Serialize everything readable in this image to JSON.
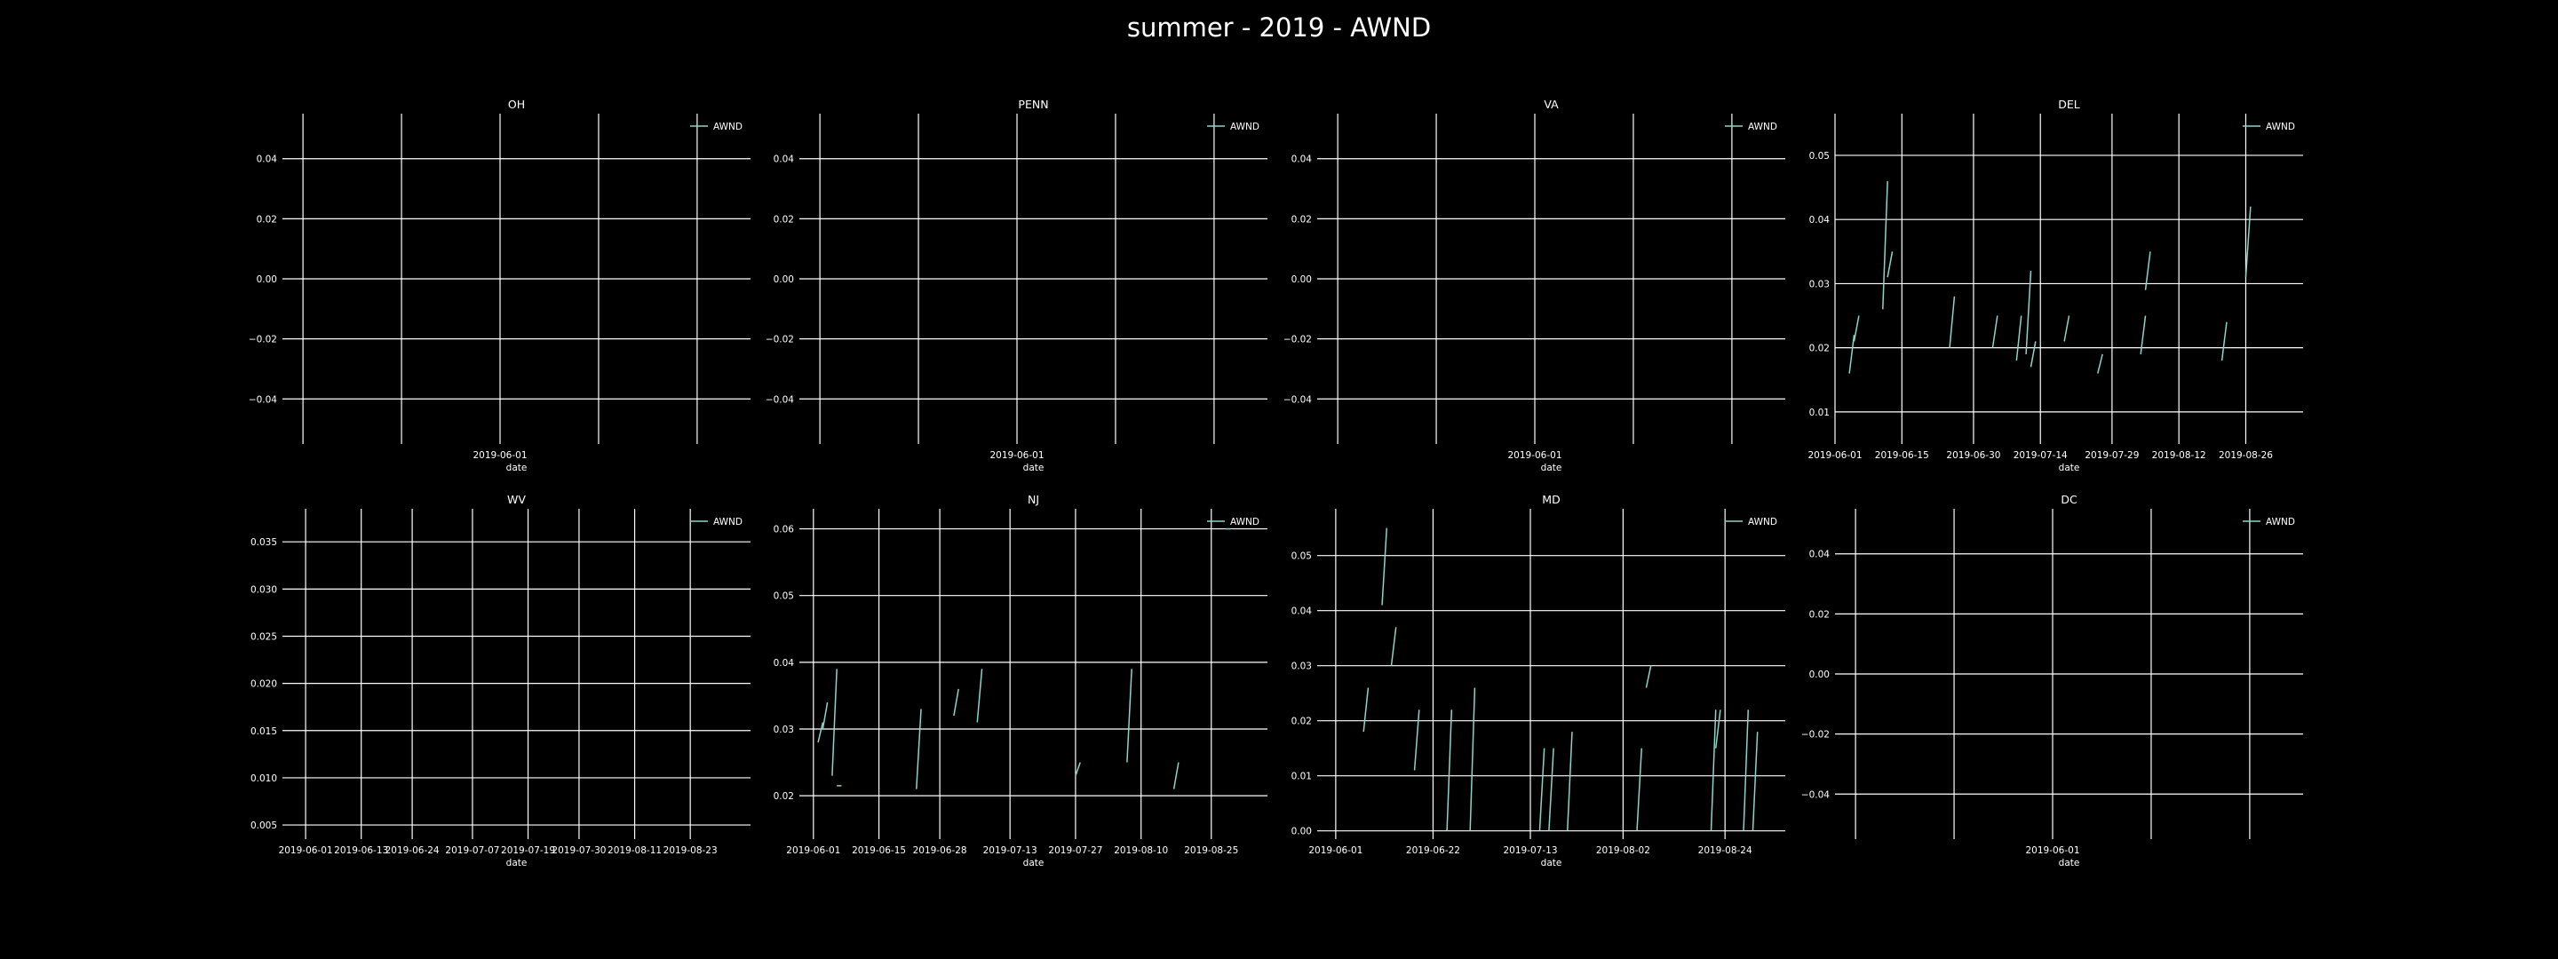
{
  "title": "summer - 2019 - AWND",
  "colors": {
    "background": "#000000",
    "grid": "#ffffff",
    "text": "#ffffff",
    "series": "#8dd3c7"
  },
  "chart_data": [
    {
      "type": "line",
      "title": "OH",
      "xlabel": "date",
      "ylabel": "",
      "legend": "AWND",
      "legend_position": "top-right",
      "grid": true,
      "ylim": [
        -0.055,
        0.055
      ],
      "yticks": [
        "0.04",
        "0.02",
        "0.00",
        "−0.02",
        "−0.04"
      ],
      "ytick_values": [
        0.04,
        0.02,
        0.0,
        -0.02,
        -0.04
      ],
      "xticks": [
        "2019-06-01"
      ],
      "xtick_values": [
        "2019-06-01"
      ],
      "xgrid": [
        "2019-05-31",
        "2019-05-31 12:00",
        "2019-06-01",
        "2019-06-01 12:00",
        "2019-06-02"
      ],
      "xlim": [
        "2019-05-30 21:30",
        "2019-06-02 06:30"
      ],
      "series": [
        {
          "name": "AWND",
          "segments": []
        }
      ]
    },
    {
      "type": "line",
      "title": "PENN",
      "xlabel": "date",
      "ylabel": "",
      "legend": "AWND",
      "legend_position": "top-right",
      "grid": true,
      "ylim": [
        -0.055,
        0.055
      ],
      "yticks": [
        "0.04",
        "0.02",
        "0.00",
        "−0.02",
        "−0.04"
      ],
      "ytick_values": [
        0.04,
        0.02,
        0.0,
        -0.02,
        -0.04
      ],
      "xticks": [
        "2019-06-01"
      ],
      "xtick_values": [
        "2019-06-01"
      ],
      "xgrid": [
        "2019-05-31",
        "2019-05-31 12:00",
        "2019-06-01",
        "2019-06-01 12:00",
        "2019-06-02"
      ],
      "xlim": [
        "2019-05-30 21:30",
        "2019-06-02 06:30"
      ],
      "series": [
        {
          "name": "AWND",
          "segments": []
        }
      ]
    },
    {
      "type": "line",
      "title": "VA",
      "xlabel": "date",
      "ylabel": "",
      "legend": "AWND",
      "legend_position": "top-right",
      "grid": true,
      "ylim": [
        -0.055,
        0.055
      ],
      "yticks": [
        "0.04",
        "0.02",
        "0.00",
        "−0.02",
        "−0.04"
      ],
      "ytick_values": [
        0.04,
        0.02,
        0.0,
        -0.02,
        -0.04
      ],
      "xticks": [
        "2019-06-01"
      ],
      "xtick_values": [
        "2019-06-01"
      ],
      "xgrid": [
        "2019-05-31",
        "2019-05-31 12:00",
        "2019-06-01",
        "2019-06-01 12:00",
        "2019-06-02"
      ],
      "xlim": [
        "2019-05-30 21:30",
        "2019-06-02 06:30"
      ],
      "series": [
        {
          "name": "AWND",
          "segments": []
        }
      ]
    },
    {
      "type": "line",
      "title": "DEL",
      "xlabel": "date",
      "ylabel": "",
      "legend": "AWND",
      "legend_position": "top-right",
      "grid": true,
      "ylim": [
        0.005,
        0.0565
      ],
      "yticks": [
        "0.05",
        "0.04",
        "0.03",
        "0.02",
        "0.01"
      ],
      "ytick_values": [
        0.05,
        0.04,
        0.03,
        0.02,
        0.01
      ],
      "xticks": [
        "2019-06-01",
        "2019-06-15",
        "2019-06-30",
        "2019-07-14",
        "2019-07-29",
        "2019-08-12",
        "2019-08-26"
      ],
      "xtick_values": [
        "2019-06-01",
        "2019-06-15",
        "2019-06-30",
        "2019-07-14",
        "2019-07-29",
        "2019-08-12",
        "2019-08-26"
      ],
      "xgrid": [
        "2019-06-01",
        "2019-06-15",
        "2019-06-30",
        "2019-07-14",
        "2019-07-29",
        "2019-08-12",
        "2019-08-26"
      ],
      "xlim": [
        "2019-06-01",
        "2019-09-07"
      ],
      "series": [
        {
          "name": "AWND",
          "segments": [
            {
              "x": [
                "2019-06-04",
                "2019-06-05"
              ],
              "y": [
                0.016,
                0.022
              ]
            },
            {
              "x": [
                "2019-06-05",
                "2019-06-06"
              ],
              "y": [
                0.021,
                0.025
              ]
            },
            {
              "x": [
                "2019-06-11",
                "2019-06-12"
              ],
              "y": [
                0.026,
                0.046
              ]
            },
            {
              "x": [
                "2019-06-12",
                "2019-06-13"
              ],
              "y": [
                0.031,
                0.035
              ]
            },
            {
              "x": [
                "2019-06-25",
                "2019-06-26"
              ],
              "y": [
                0.02,
                0.028
              ]
            },
            {
              "x": [
                "2019-07-04",
                "2019-07-05"
              ],
              "y": [
                0.02,
                0.025
              ]
            },
            {
              "x": [
                "2019-07-09",
                "2019-07-10"
              ],
              "y": [
                0.018,
                0.025
              ]
            },
            {
              "x": [
                "2019-07-11",
                "2019-07-12"
              ],
              "y": [
                0.019,
                0.032
              ]
            },
            {
              "x": [
                "2019-07-12",
                "2019-07-13"
              ],
              "y": [
                0.017,
                0.021
              ]
            },
            {
              "x": [
                "2019-07-19",
                "2019-07-20"
              ],
              "y": [
                0.021,
                0.025
              ]
            },
            {
              "x": [
                "2019-07-26",
                "2019-07-27"
              ],
              "y": [
                0.016,
                0.019
              ]
            },
            {
              "x": [
                "2019-08-04",
                "2019-08-05"
              ],
              "y": [
                0.019,
                0.025
              ]
            },
            {
              "x": [
                "2019-08-05",
                "2019-08-06"
              ],
              "y": [
                0.029,
                0.035
              ]
            },
            {
              "x": [
                "2019-08-21",
                "2019-08-22"
              ],
              "y": [
                0.018,
                0.024
              ]
            },
            {
              "x": [
                "2019-08-26",
                "2019-08-27"
              ],
              "y": [
                0.031,
                0.042
              ]
            }
          ]
        }
      ]
    },
    {
      "type": "line",
      "title": "WV",
      "xlabel": "date",
      "ylabel": "",
      "legend": "AWND",
      "legend_position": "top-right",
      "grid": true,
      "ylim": [
        0.0035,
        0.0385
      ],
      "yticks": [
        "0.035",
        "0.030",
        "0.025",
        "0.020",
        "0.015",
        "0.010",
        "0.005"
      ],
      "ytick_values": [
        0.035,
        0.03,
        0.025,
        0.02,
        0.015,
        0.01,
        0.005
      ],
      "xticks": [
        "2019-06-01",
        "2019-06-13",
        "2019-06-24",
        "2019-07-07",
        "2019-07-19",
        "2019-07-30",
        "2019-08-11",
        "2019-08-23"
      ],
      "xtick_values": [
        "2019-06-01",
        "2019-06-13",
        "2019-06-24",
        "2019-07-07",
        "2019-07-19",
        "2019-07-30",
        "2019-08-11",
        "2019-08-23"
      ],
      "xgrid": [
        "2019-06-01",
        "2019-06-13",
        "2019-06-24",
        "2019-07-07",
        "2019-07-19",
        "2019-07-30",
        "2019-08-11",
        "2019-08-23"
      ],
      "xlim": [
        "2019-05-27",
        "2019-09-05"
      ],
      "series": [
        {
          "name": "AWND",
          "segments": []
        }
      ]
    },
    {
      "type": "line",
      "title": "NJ",
      "xlabel": "date",
      "ylabel": "",
      "legend": "AWND",
      "legend_position": "top-right",
      "grid": true,
      "ylim": [
        0.0135,
        0.063
      ],
      "yticks": [
        "0.06",
        "0.05",
        "0.04",
        "0.03",
        "0.02"
      ],
      "ytick_values": [
        0.06,
        0.05,
        0.04,
        0.03,
        0.02
      ],
      "xticks": [
        "2019-06-01",
        "2019-06-15",
        "2019-06-28",
        "2019-07-13",
        "2019-07-27",
        "2019-08-10",
        "2019-08-25"
      ],
      "xtick_values": [
        "2019-06-01",
        "2019-06-15",
        "2019-06-28",
        "2019-07-13",
        "2019-07-27",
        "2019-08-10",
        "2019-08-25"
      ],
      "xgrid": [
        "2019-06-01",
        "2019-06-15",
        "2019-06-28",
        "2019-07-13",
        "2019-07-27",
        "2019-08-10",
        "2019-08-25"
      ],
      "xlim": [
        "2019-05-29",
        "2019-09-06"
      ],
      "series": [
        {
          "name": "AWND",
          "segments": [
            {
              "x": [
                "2019-06-02",
                "2019-06-03"
              ],
              "y": [
                0.028,
                0.031
              ]
            },
            {
              "x": [
                "2019-06-03",
                "2019-06-04"
              ],
              "y": [
                0.03,
                0.034
              ]
            },
            {
              "x": [
                "2019-06-05",
                "2019-06-06"
              ],
              "y": [
                0.023,
                0.039
              ]
            },
            {
              "x": [
                "2019-06-06",
                "2019-06-07"
              ],
              "y": [
                0.0215,
                0.0215
              ]
            },
            {
              "x": [
                "2019-06-23",
                "2019-06-24"
              ],
              "y": [
                0.021,
                0.033
              ]
            },
            {
              "x": [
                "2019-07-01",
                "2019-07-02"
              ],
              "y": [
                0.032,
                0.036
              ]
            },
            {
              "x": [
                "2019-07-06",
                "2019-07-07"
              ],
              "y": [
                0.031,
                0.039
              ]
            },
            {
              "x": [
                "2019-07-27",
                "2019-07-28"
              ],
              "y": [
                0.023,
                0.025
              ]
            },
            {
              "x": [
                "2019-08-07",
                "2019-08-08"
              ],
              "y": [
                0.025,
                0.039
              ]
            },
            {
              "x": [
                "2019-08-17",
                "2019-08-18"
              ],
              "y": [
                0.021,
                0.025
              ]
            },
            {
              "x": [
                "2019-08-28",
                "2019-08-29"
              ],
              "y": [
                0.06,
                0.06
              ]
            }
          ]
        }
      ]
    },
    {
      "type": "line",
      "title": "MD",
      "xlabel": "date",
      "ylabel": "",
      "legend": "AWND",
      "legend_position": "top-right",
      "grid": true,
      "ylim": [
        -0.0015,
        0.0585
      ],
      "yticks": [
        "0.05",
        "0.04",
        "0.03",
        "0.02",
        "0.01",
        "0.00"
      ],
      "ytick_values": [
        0.05,
        0.04,
        0.03,
        0.02,
        0.01,
        0.0
      ],
      "xticks": [
        "2019-06-01",
        "2019-06-22",
        "2019-07-13",
        "2019-08-02",
        "2019-08-24"
      ],
      "xtick_values": [
        "2019-06-01",
        "2019-06-22",
        "2019-07-13",
        "2019-08-02",
        "2019-08-24"
      ],
      "xgrid": [
        "2019-06-01",
        "2019-06-22",
        "2019-07-13",
        "2019-08-02",
        "2019-08-24"
      ],
      "xlim": [
        "2019-05-28",
        "2019-09-06"
      ],
      "series": [
        {
          "name": "AWND",
          "segments": [
            {
              "x": [
                "2019-06-07",
                "2019-06-08"
              ],
              "y": [
                0.018,
                0.026
              ]
            },
            {
              "x": [
                "2019-06-11",
                "2019-06-12"
              ],
              "y": [
                0.041,
                0.055
              ]
            },
            {
              "x": [
                "2019-06-13",
                "2019-06-14"
              ],
              "y": [
                0.03,
                0.037
              ]
            },
            {
              "x": [
                "2019-06-18",
                "2019-06-19"
              ],
              "y": [
                0.011,
                0.022
              ]
            },
            {
              "x": [
                "2019-06-25",
                "2019-06-26"
              ],
              "y": [
                0.0,
                0.022
              ]
            },
            {
              "x": [
                "2019-06-30",
                "2019-07-01"
              ],
              "y": [
                0.0,
                0.026
              ]
            },
            {
              "x": [
                "2019-07-15",
                "2019-07-16"
              ],
              "y": [
                0.0,
                0.015
              ]
            },
            {
              "x": [
                "2019-07-17",
                "2019-07-18"
              ],
              "y": [
                0.0,
                0.015
              ]
            },
            {
              "x": [
                "2019-07-21",
                "2019-07-22"
              ],
              "y": [
                0.0,
                0.018
              ]
            },
            {
              "x": [
                "2019-08-05",
                "2019-08-06"
              ],
              "y": [
                0.0,
                0.015
              ]
            },
            {
              "x": [
                "2019-08-07",
                "2019-08-08"
              ],
              "y": [
                0.026,
                0.03
              ]
            },
            {
              "x": [
                "2019-08-21",
                "2019-08-22"
              ],
              "y": [
                0.0,
                0.022
              ]
            },
            {
              "x": [
                "2019-08-22",
                "2019-08-23"
              ],
              "y": [
                0.015,
                0.022
              ]
            },
            {
              "x": [
                "2019-08-28",
                "2019-08-29"
              ],
              "y": [
                0.0,
                0.022
              ]
            },
            {
              "x": [
                "2019-08-30",
                "2019-08-31"
              ],
              "y": [
                0.0,
                0.018
              ]
            }
          ]
        }
      ]
    },
    {
      "type": "line",
      "title": "DC",
      "xlabel": "date",
      "ylabel": "",
      "legend": "AWND",
      "legend_position": "top-right",
      "grid": true,
      "ylim": [
        -0.055,
        0.055
      ],
      "yticks": [
        "0.04",
        "0.02",
        "0.00",
        "−0.02",
        "−0.04"
      ],
      "ytick_values": [
        0.04,
        0.02,
        0.0,
        -0.02,
        -0.04
      ],
      "xticks": [
        "2019-06-01"
      ],
      "xtick_values": [
        "2019-06-01"
      ],
      "xgrid": [
        "2019-05-31",
        "2019-05-31 12:00",
        "2019-06-01",
        "2019-06-01 12:00",
        "2019-06-02"
      ],
      "xlim": [
        "2019-05-30 21:30",
        "2019-06-02 06:30"
      ],
      "series": [
        {
          "name": "AWND",
          "segments": []
        }
      ]
    }
  ]
}
